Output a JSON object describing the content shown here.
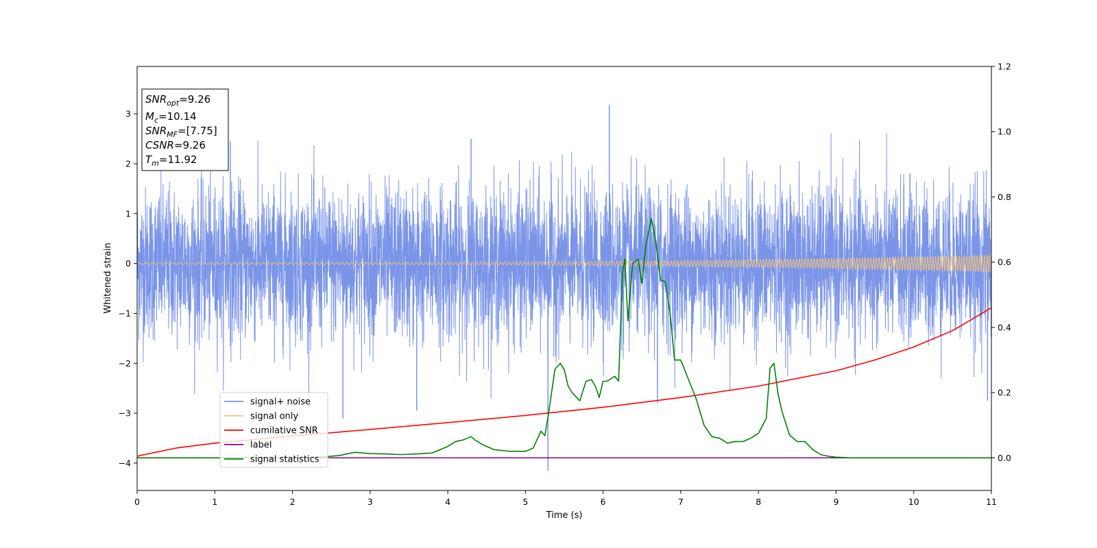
{
  "chart_data": {
    "type": "line",
    "xlabel": "Time (s)",
    "ylabel": "Whitened strain",
    "xlim": [
      0,
      11
    ],
    "ylim_left": [
      -4.55,
      3.95
    ],
    "ylim_right": [
      -0.1,
      1.2
    ],
    "grid": false,
    "legend_position": "lower-left",
    "x_ticks": [
      "0",
      "1",
      "2",
      "3",
      "4",
      "5",
      "6",
      "7",
      "8",
      "9",
      "10",
      "11"
    ],
    "y_left_ticks": [
      "−4",
      "−3",
      "−2",
      "−1",
      "0",
      "1",
      "2",
      "3"
    ],
    "y_right_ticks": [
      "0.0",
      "0.2",
      "0.4",
      "0.6",
      "0.8",
      "1.0",
      "1.2"
    ],
    "info_box": {
      "lines": [
        {
          "main": "SNR",
          "sub": "opt",
          "value": "=9.26"
        },
        {
          "main": "M",
          "sub": "c",
          "value": "=10.14"
        },
        {
          "main": "SNR",
          "sub": "MF",
          "value": "=[7.75]"
        },
        {
          "main": "CSNR",
          "sub": "",
          "value": "=9.26"
        },
        {
          "main": "T",
          "sub": "m",
          "value": "=11.92"
        }
      ]
    },
    "series": [
      {
        "name": "signal+ noise",
        "axis": "left",
        "color": "#7a95e8",
        "description_std": 0.75,
        "spikes": [
          {
            "x": 6.08,
            "y": 3.18
          },
          {
            "x": 5.29,
            "y": -4.15
          },
          {
            "x": 2.65,
            "y": -3.1
          },
          {
            "x": 3.6,
            "y": -2.95
          },
          {
            "x": 10.95,
            "y": -2.75
          },
          {
            "x": 6.7,
            "y": -2.8
          },
          {
            "x": 1.2,
            "y": 2.45
          },
          {
            "x": 4.3,
            "y": 2.5
          }
        ]
      },
      {
        "name": "signal only",
        "axis": "left",
        "color": "#f5c27a",
        "amplitude_start": 0.02,
        "amplitude_end": 0.17
      },
      {
        "name": "cumilative SNR",
        "axis": "right",
        "color": "#ff0000",
        "x": [
          0,
          0.5,
          1,
          2,
          3,
          4,
          5,
          6,
          7,
          8,
          9,
          9.5,
          10,
          10.5,
          11
        ],
        "y": [
          0.005,
          0.03,
          0.045,
          0.067,
          0.087,
          0.108,
          0.13,
          0.155,
          0.185,
          0.22,
          0.267,
          0.3,
          0.34,
          0.39,
          0.46
        ]
      },
      {
        "name": "label",
        "axis": "right",
        "color": "#800080",
        "x": [
          0,
          11
        ],
        "y": [
          0.0,
          0.0
        ]
      },
      {
        "name": "signal statistics",
        "axis": "right",
        "color": "#008000",
        "x": [
          0,
          1,
          2,
          2.4,
          2.6,
          2.8,
          3.0,
          3.2,
          3.4,
          3.6,
          3.8,
          3.9,
          4.0,
          4.1,
          4.2,
          4.3,
          4.35,
          4.45,
          4.6,
          4.8,
          5.0,
          5.1,
          5.2,
          5.25,
          5.3,
          5.38,
          5.45,
          5.5,
          5.55,
          5.6,
          5.7,
          5.78,
          5.85,
          5.9,
          5.95,
          6.0,
          6.05,
          6.15,
          6.2,
          6.25,
          6.28,
          6.32,
          6.38,
          6.45,
          6.5,
          6.55,
          6.62,
          6.68,
          6.74,
          6.8,
          6.86,
          6.92,
          7.0,
          7.1,
          7.2,
          7.3,
          7.4,
          7.5,
          7.6,
          7.7,
          7.8,
          7.9,
          8.0,
          8.1,
          8.15,
          8.2,
          8.25,
          8.3,
          8.4,
          8.5,
          8.6,
          8.7,
          8.8,
          8.9,
          9.0,
          9.2,
          9.5,
          10,
          11
        ],
        "y": [
          0.0,
          0.0,
          0.0,
          0.003,
          0.007,
          0.017,
          0.013,
          0.012,
          0.01,
          0.012,
          0.015,
          0.025,
          0.035,
          0.05,
          0.055,
          0.065,
          0.055,
          0.04,
          0.025,
          0.02,
          0.02,
          0.03,
          0.082,
          0.068,
          0.14,
          0.272,
          0.29,
          0.27,
          0.22,
          0.2,
          0.175,
          0.235,
          0.24,
          0.22,
          0.185,
          0.235,
          0.235,
          0.25,
          0.235,
          0.57,
          0.61,
          0.42,
          0.595,
          0.61,
          0.535,
          0.65,
          0.735,
          0.66,
          0.545,
          0.54,
          0.45,
          0.3,
          0.3,
          0.24,
          0.18,
          0.1,
          0.065,
          0.06,
          0.045,
          0.05,
          0.05,
          0.06,
          0.075,
          0.12,
          0.275,
          0.29,
          0.2,
          0.145,
          0.07,
          0.05,
          0.05,
          0.025,
          0.01,
          0.005,
          0.002,
          0.0,
          0.0,
          0.0,
          0.0
        ]
      }
    ]
  }
}
